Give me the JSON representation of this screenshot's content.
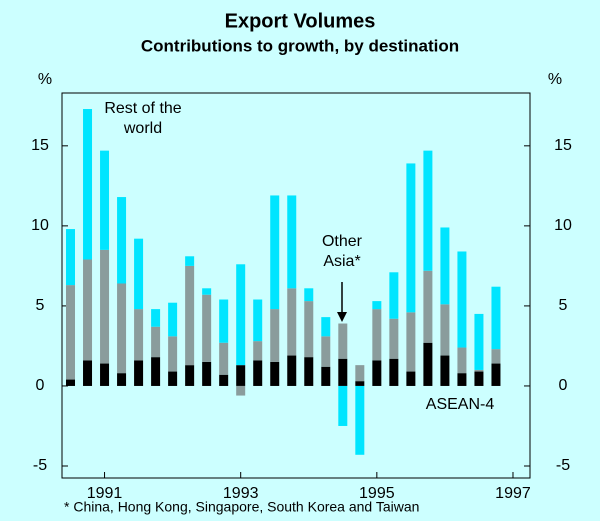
{
  "chart_data": {
    "type": "stacked_bar",
    "title": "Export Volumes",
    "subtitle": "Contributions to growth, by destination",
    "y_unit_left": "%",
    "y_unit_right": "%",
    "footnote": "* China, Hong Kong, Singapore, South Korea and Taiwan",
    "x": [
      1990.5,
      1990.75,
      1991,
      1991.25,
      1991.5,
      1991.75,
      1992,
      1992.25,
      1992.5,
      1992.75,
      1993,
      1993.25,
      1993.5,
      1993.75,
      1994,
      1994.25,
      1994.5,
      1994.75,
      1995,
      1995.25,
      1995.5,
      1995.75,
      1996,
      1996.25,
      1996.5,
      1996.75
    ],
    "xlim": [
      1990.375,
      1997.25
    ],
    "xticks": [
      1991,
      1993,
      1995,
      1997
    ],
    "ylim": [
      -5.75,
      18.3
    ],
    "yticks": [
      -5,
      0,
      5,
      10,
      15
    ],
    "series": [
      {
        "name": "ASEAN-4",
        "color": "#000000",
        "values": [
          0.4,
          1.6,
          1.4,
          0.8,
          1.6,
          1.8,
          0.9,
          1.3,
          1.5,
          0.7,
          1.3,
          1.6,
          1.5,
          1.9,
          1.8,
          1.2,
          1.7,
          0.3,
          1.6,
          1.7,
          0.9,
          2.7,
          1.9,
          0.8,
          0.9,
          1.4
        ]
      },
      {
        "name": "Other Asia*",
        "color": "#8a9c9c",
        "values": [
          5.9,
          6.3,
          7.1,
          5.6,
          3.2,
          1.9,
          2.2,
          6.2,
          4.2,
          2.0,
          -0.6,
          1.2,
          3.3,
          4.2,
          3.5,
          1.9,
          2.2,
          1.0,
          3.2,
          2.5,
          3.7,
          4.5,
          3.2,
          1.6,
          0.1,
          0.9
        ]
      },
      {
        "name": "Rest of the world",
        "color": "#00e5ff",
        "values": [
          3.5,
          9.4,
          6.2,
          5.4,
          4.4,
          1.1,
          2.1,
          0.6,
          0.4,
          2.7,
          6.3,
          2.6,
          7.1,
          5.8,
          0.8,
          1.2,
          -2.5,
          -4.3,
          0.5,
          2.9,
          9.3,
          7.5,
          4.8,
          6.0,
          3.5,
          3.9
        ]
      }
    ]
  }
}
